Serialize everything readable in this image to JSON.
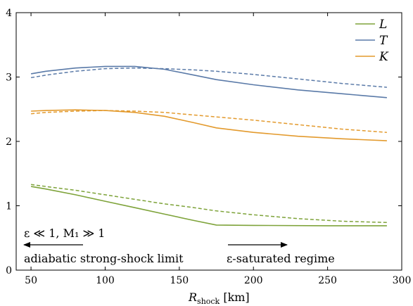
{
  "chart_data": {
    "type": "line",
    "xlabel_main": "R",
    "xlabel_sub": "shock",
    "xlabel_unit": " [km]",
    "ylabel": "",
    "xlim": [
      40,
      300
    ],
    "ylim": [
      0,
      4
    ],
    "x_ticks": [
      50,
      100,
      150,
      200,
      250,
      300
    ],
    "y_ticks": [
      0,
      1,
      2,
      3,
      4
    ],
    "grid": false,
    "legend_position": "top-right",
    "series": [
      {
        "name": "L",
        "color": "#7ea33a",
        "solid": {
          "x": [
            50,
            60,
            80,
            100,
            120,
            140,
            160,
            175,
            200,
            250,
            290
          ],
          "y": [
            1.3,
            1.26,
            1.17,
            1.07,
            0.97,
            0.87,
            0.77,
            0.7,
            0.695,
            0.69,
            0.69
          ]
        },
        "dashed": {
          "x": [
            50,
            60,
            80,
            100,
            120,
            140,
            160,
            175,
            200,
            230,
            260,
            290
          ],
          "y": [
            1.33,
            1.3,
            1.24,
            1.17,
            1.1,
            1.03,
            0.97,
            0.92,
            0.86,
            0.8,
            0.76,
            0.74
          ]
        }
      },
      {
        "name": "T",
        "color": "#5a7aa8",
        "solid": {
          "x": [
            50,
            60,
            80,
            100,
            120,
            140,
            160,
            175,
            200,
            230,
            260,
            290
          ],
          "y": [
            3.05,
            3.09,
            3.14,
            3.165,
            3.165,
            3.12,
            3.03,
            2.96,
            2.88,
            2.8,
            2.74,
            2.68
          ]
        },
        "dashed": {
          "x": [
            50,
            60,
            80,
            100,
            120,
            140,
            160,
            175,
            200,
            230,
            260,
            290
          ],
          "y": [
            2.99,
            3.03,
            3.09,
            3.13,
            3.14,
            3.13,
            3.11,
            3.09,
            3.04,
            2.97,
            2.9,
            2.84
          ]
        }
      },
      {
        "name": "K",
        "color": "#e39a2d",
        "solid": {
          "x": [
            50,
            60,
            80,
            100,
            120,
            140,
            160,
            175,
            200,
            230,
            260,
            290
          ],
          "y": [
            2.47,
            2.48,
            2.49,
            2.48,
            2.45,
            2.39,
            2.29,
            2.21,
            2.14,
            2.08,
            2.04,
            2.01
          ]
        },
        "dashed": {
          "x": [
            50,
            60,
            80,
            100,
            120,
            140,
            160,
            175,
            200,
            230,
            260,
            290
          ],
          "y": [
            2.43,
            2.45,
            2.47,
            2.48,
            2.47,
            2.45,
            2.41,
            2.38,
            2.33,
            2.26,
            2.19,
            2.14
          ]
        }
      }
    ],
    "annotations": {
      "left_condition": "ε ≪ 1,  M₁ ≫ 1",
      "left_regime": "adiabatic strong-shock limit",
      "right_regime": "ε-saturated regime"
    }
  }
}
